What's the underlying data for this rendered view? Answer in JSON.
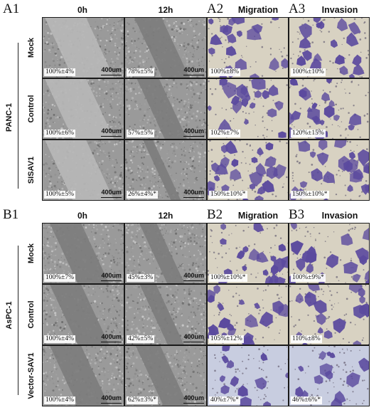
{
  "panel_A": {
    "labels": {
      "wound": "A1",
      "migration": "A2",
      "invasion": "A3"
    },
    "cell_line": "PANC-1",
    "headers": {
      "t0": "0h",
      "t12": "12h",
      "migration": "Migration",
      "invasion": "Invasion"
    },
    "rows": [
      {
        "label": "Mock",
        "wound_0h": "100%±4%",
        "wound_12h": "78%±5%",
        "migration": "100%±8%",
        "invasion": "100%±10%",
        "wound_open_fraction": 0.55
      },
      {
        "label": "Control",
        "wound_0h": "100%±6%",
        "wound_12h": "57%±5%",
        "migration": "102%±7%",
        "invasion": "120%±15%",
        "wound_open_fraction": 0.45
      },
      {
        "label": "SISAV1",
        "wound_0h": "100%±5%",
        "wound_12h": "26%±4%*",
        "migration": "150%±10%*",
        "invasion": "150%±10%*",
        "wound_open_fraction": 0.2
      }
    ]
  },
  "panel_B": {
    "labels": {
      "wound": "B1",
      "migration": "B2",
      "invasion": "B3"
    },
    "cell_line": "AsPC-1",
    "headers": {
      "t0": "0h",
      "t12": "12h",
      "migration": "Migration",
      "invasion": "Invasion"
    },
    "rows": [
      {
        "label": "Mock",
        "wound_0h": "100%±7%",
        "wound_12h": "45%±3%",
        "migration": "100%±10%*",
        "invasion": "100%±9%*",
        "wound_open_fraction": 0.35
      },
      {
        "label": "Control",
        "wound_0h": "100%±4%",
        "wound_12h": "42%±5%",
        "migration": "105%±12%",
        "invasion": "110%±8%",
        "wound_open_fraction": 0.33
      },
      {
        "label": "Vector-SAV1",
        "wound_0h": "100%±4%",
        "wound_12h": "62%±3%*",
        "migration": "40%±7%*",
        "invasion": "46%±6%*",
        "wound_open_fraction": 0.5
      }
    ]
  },
  "scale_bar": "400um",
  "colors": {
    "wound_cells": "#9a9a9a",
    "wound_gap": "#b8b8b8",
    "wound_gap_dark": "#7c7c7c",
    "transwell_bg": "#d8d2c2",
    "transwell_bg_b": "#c8cde0",
    "transwell_cells": "#5b4a9e"
  }
}
